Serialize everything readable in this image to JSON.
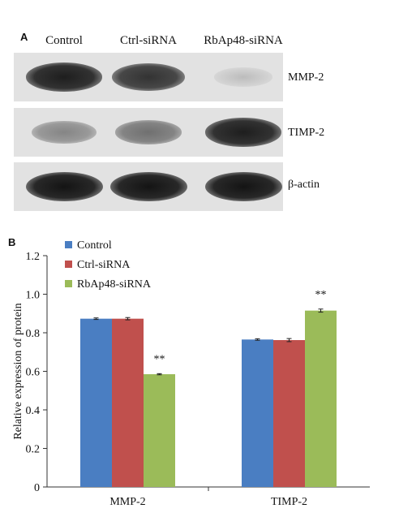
{
  "panel_a": {
    "letter": "A",
    "lanes": [
      "Control",
      "Ctrl-siRNA",
      "RbAp48-siRNA"
    ],
    "blots": [
      {
        "label": "MMP-2",
        "intensity": [
          0.95,
          0.85,
          0.18
        ]
      },
      {
        "label": "TIMP-2",
        "intensity": [
          0.45,
          0.55,
          0.95
        ]
      },
      {
        "label": "β-actin",
        "intensity": [
          1.0,
          1.0,
          1.0
        ]
      }
    ]
  },
  "panel_b": {
    "letter": "B"
  },
  "chart_data": {
    "type": "bar",
    "categories": [
      "MMP-2",
      "TIMP-2"
    ],
    "series": [
      {
        "name": "Control",
        "values": [
          0.873,
          0.765
        ],
        "errors": [
          0.004,
          0.004
        ],
        "color": "#4a7ec2"
      },
      {
        "name": "Ctrl-siRNA",
        "values": [
          0.873,
          0.762
        ],
        "errors": [
          0.006,
          0.008
        ],
        "color": "#c0504d"
      },
      {
        "name": "RbAp48-siRNA",
        "values": [
          0.585,
          0.915
        ],
        "errors": [
          0.003,
          0.008
        ],
        "color": "#9bbb59"
      }
    ],
    "annotations": [
      {
        "category": "MMP-2",
        "series": "RbAp48-siRNA",
        "text": "**"
      },
      {
        "category": "TIMP-2",
        "series": "RbAp48-siRNA",
        "text": "**"
      }
    ],
    "ylabel": "Relative expression of protein",
    "xlabel": "",
    "ylim": [
      0,
      1.2
    ],
    "yticks": [
      "0",
      "0.2",
      "0.4",
      "0.6",
      "0.8",
      "1.0",
      "1.2"
    ],
    "grid": false,
    "legend": "top-left"
  }
}
